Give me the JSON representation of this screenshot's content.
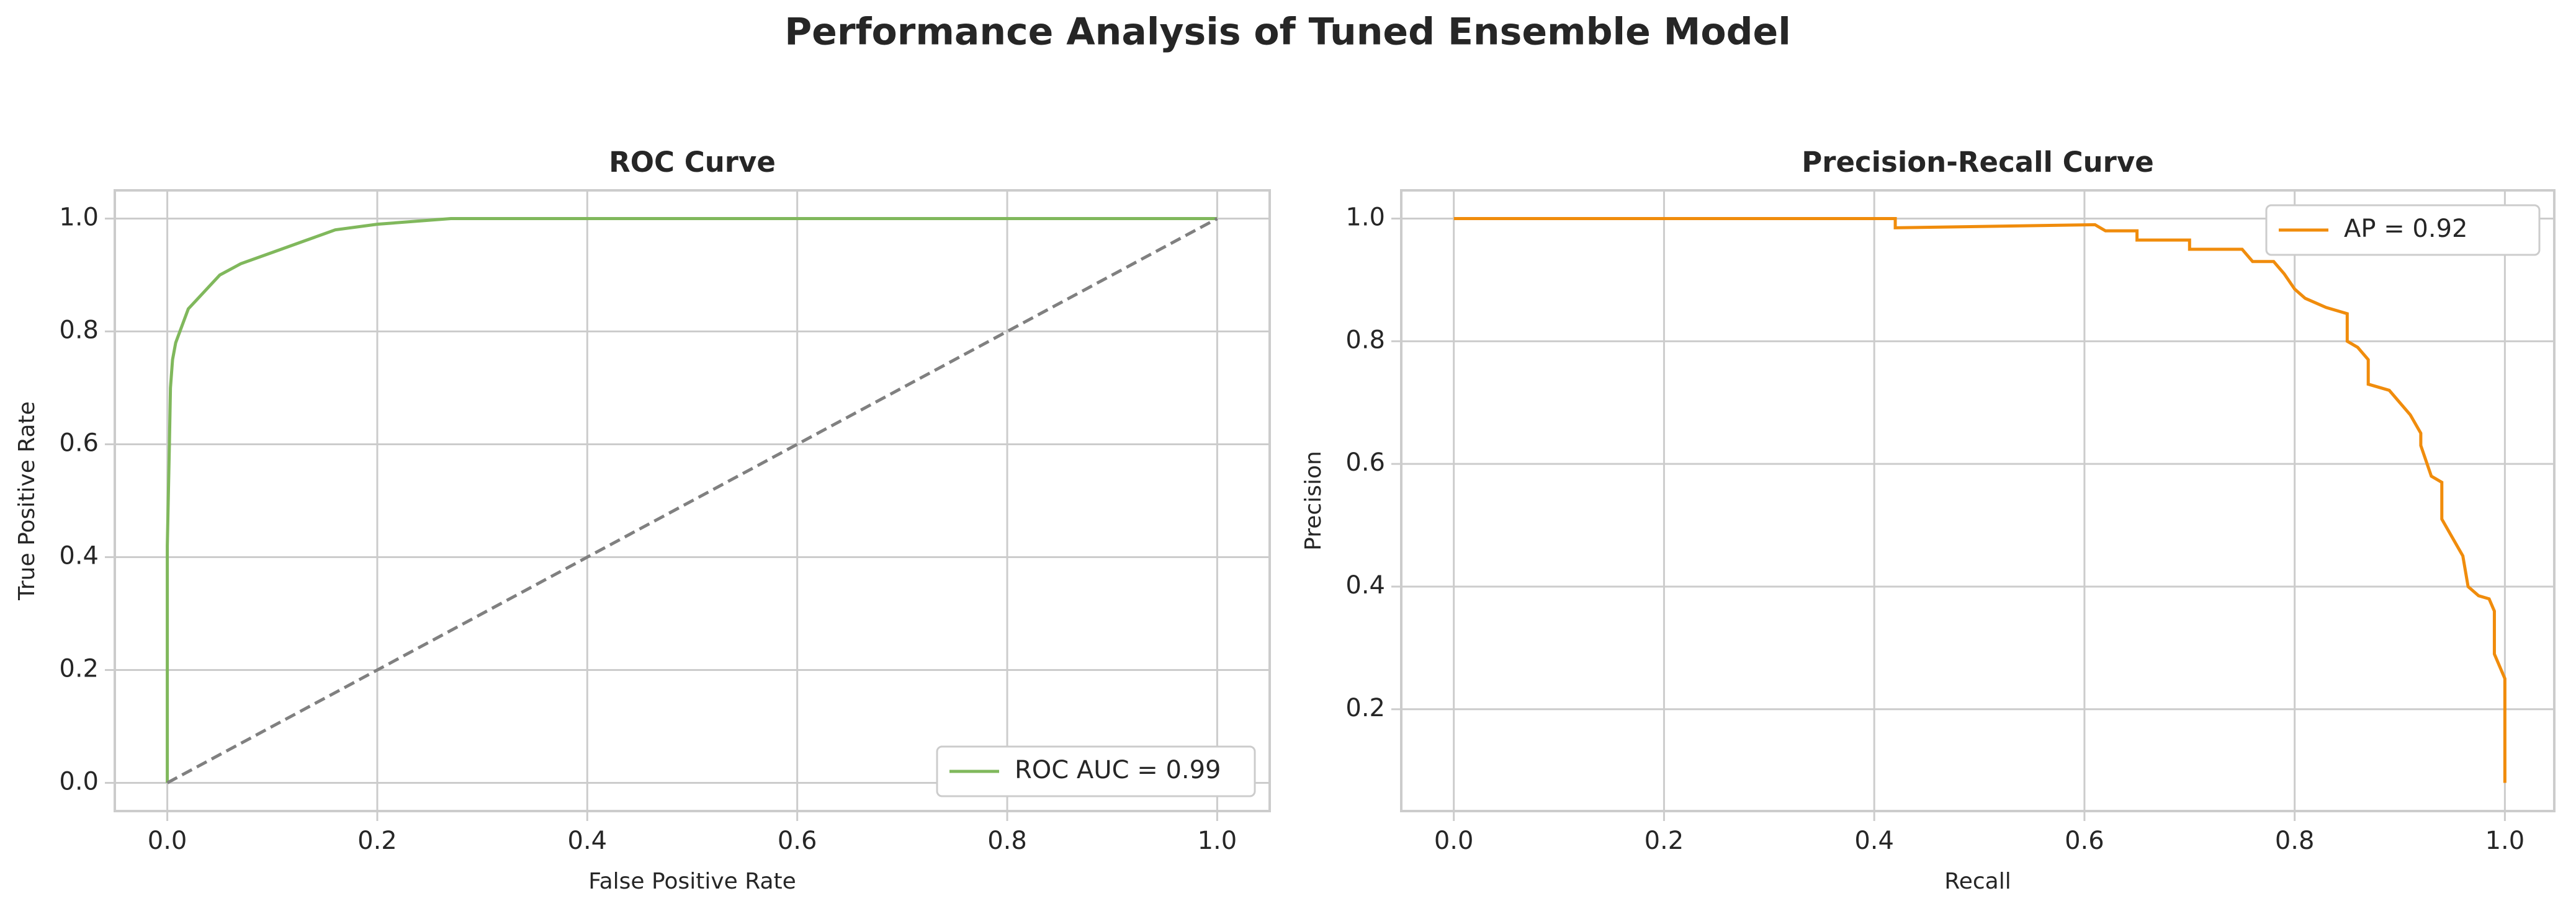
{
  "title": "Performance Analysis of Tuned Ensemble Model",
  "chart_data": [
    {
      "type": "line",
      "title": "ROC Curve",
      "xlabel": "False Positive Rate",
      "ylabel": "True Positive Rate",
      "xlim": [
        -0.05,
        1.05
      ],
      "ylim": [
        -0.05,
        1.05
      ],
      "xticks": [
        {
          "value": 0,
          "label": "0.0"
        },
        0.2,
        0.4,
        0.6,
        0.8,
        {
          "value": 1,
          "label": "1.0"
        }
      ],
      "yticks": [
        {
          "value": 0,
          "label": "0.0"
        },
        0.2,
        0.4,
        0.6,
        0.8,
        {
          "value": 1,
          "label": "1.0"
        }
      ],
      "grid": true,
      "legend": "lower right",
      "series": [
        {
          "name": "ROC AUC = 0.99",
          "color": "#80b85c",
          "style": "solid",
          "x": [
            0,
            0,
            0.002,
            0.003,
            0.005,
            0.008,
            0.012,
            0.02,
            0.03,
            0.04,
            0.05,
            0.07,
            0.1,
            0.13,
            0.16,
            0.2,
            0.27,
            1
          ],
          "values": [
            0,
            0.42,
            0.6,
            0.7,
            0.75,
            0.78,
            0.8,
            0.84,
            0.86,
            0.88,
            0.9,
            0.92,
            0.94,
            0.96,
            0.98,
            0.99,
            1,
            1
          ]
        },
        {
          "color": "#808080",
          "style": "dashed",
          "x": [
            0,
            1
          ],
          "values": [
            0,
            1
          ]
        }
      ]
    },
    {
      "type": "line",
      "title": "Precision-Recall Curve",
      "xlabel": "Recall",
      "ylabel": "Precision",
      "xlim": [
        -0.05,
        1.047
      ],
      "ylim": [
        0.034,
        1.046
      ],
      "xticks": [
        {
          "value": 0,
          "label": "0.0"
        },
        0.2,
        0.4,
        0.6,
        0.8,
        {
          "value": 1,
          "label": "1.0"
        }
      ],
      "yticks": [
        0.2,
        0.4,
        0.6,
        0.8,
        {
          "value": 1,
          "label": "1.0"
        }
      ],
      "grid": true,
      "legend": "upper right",
      "series": [
        {
          "name": "AP = 0.92",
          "color": "#f08c0c",
          "style": "solid",
          "x": [
            0,
            0.42,
            0.42,
            0.61,
            0.62,
            0.65,
            0.65,
            0.7,
            0.7,
            0.75,
            0.76,
            0.78,
            0.79,
            0.8,
            0.81,
            0.83,
            0.84,
            0.85,
            0.85,
            0.86,
            0.87,
            0.87,
            0.89,
            0.9,
            0.91,
            0.92,
            0.92,
            0.93,
            0.94,
            0.94,
            0.95,
            0.96,
            0.965,
            0.975,
            0.985,
            0.99,
            0.99,
            1,
            1
          ],
          "values": [
            1,
            1,
            0.985,
            0.99,
            0.98,
            0.98,
            0.965,
            0.965,
            0.95,
            0.95,
            0.93,
            0.93,
            0.91,
            0.885,
            0.87,
            0.855,
            0.85,
            0.845,
            0.8,
            0.79,
            0.77,
            0.73,
            0.72,
            0.7,
            0.68,
            0.65,
            0.63,
            0.58,
            0.57,
            0.51,
            0.48,
            0.45,
            0.4,
            0.385,
            0.38,
            0.36,
            0.29,
            0.25,
            0.08
          ]
        }
      ]
    }
  ]
}
